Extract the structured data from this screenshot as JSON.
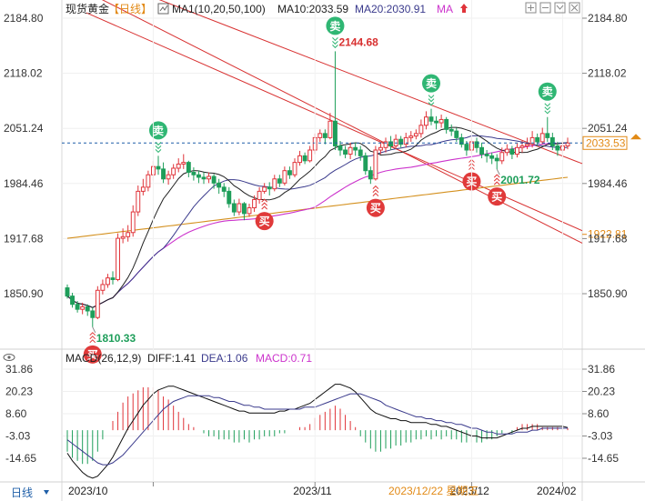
{
  "header": {
    "instrument": "现货黄金",
    "period": "【日线】",
    "ma_label": "MA1(10,20,50,100)",
    "ma10_label": "MA10:2033.59",
    "ma20_label": "MA20:2030.91",
    "ma_suffix": "MA"
  },
  "macd_header": {
    "label": "MACD(26,12,9)",
    "diff": "DIFF:1.41",
    "dea": "DEA:1.06",
    "macd": "MACD:0.71"
  },
  "footer": {
    "period_button": "日线",
    "selected_date": "2023/12/22 星期五"
  },
  "colors": {
    "up": "#e0343a",
    "down": "#1e9e5a",
    "ma10": "#222222",
    "ma20": "#3a3a8c",
    "ma50": "#cc33cc",
    "ma100": "#d4901e",
    "channel": "#d83030",
    "price_line": "#1f5fa8",
    "sell_badge": "#2fb673",
    "buy_badge": "#e03a3a"
  },
  "chart_data": [
    {
      "type": "candlestick",
      "y_ticks": [
        "2184.80",
        "2118.02",
        "2051.24",
        "1984.46",
        "1917.68",
        "1850.90"
      ],
      "ylim": [
        1790,
        2200
      ],
      "x_ticks": [
        "2023/10",
        "2023/11",
        "2023/12",
        "2024/02"
      ],
      "current_price": "2033.53",
      "extra_price_label": "1922.81",
      "annotations": [
        {
          "text": "2144.68",
          "index": 53,
          "value": 2144.68
        },
        {
          "text": "1810.33",
          "index": 5,
          "value": 1810.33
        },
        {
          "text": "2001.72",
          "index": 85,
          "value": 2001.72
        }
      ],
      "signals": [
        {
          "type": "sell",
          "label": "卖",
          "index": 18
        },
        {
          "type": "sell",
          "label": "卖",
          "index": 53
        },
        {
          "type": "sell",
          "label": "卖",
          "index": 72
        },
        {
          "type": "sell",
          "label": "卖",
          "index": 95
        },
        {
          "type": "buy",
          "label": "买",
          "index": 5
        },
        {
          "type": "buy",
          "label": "买",
          "index": 39
        },
        {
          "type": "buy",
          "label": "买",
          "index": 61
        },
        {
          "type": "buy",
          "label": "买",
          "index": 80
        },
        {
          "type": "buy",
          "label": "买",
          "index": 85
        }
      ],
      "candles": [
        [
          1858,
          1848,
          1862,
          1845
        ],
        [
          1848,
          1838,
          1852,
          1834
        ],
        [
          1838,
          1832,
          1842,
          1828
        ],
        [
          1832,
          1835,
          1840,
          1826
        ],
        [
          1835,
          1830,
          1838,
          1824
        ],
        [
          1830,
          1822,
          1834,
          1810.33
        ],
        [
          1822,
          1855,
          1860,
          1820
        ],
        [
          1855,
          1862,
          1868,
          1850
        ],
        [
          1862,
          1870,
          1875,
          1858
        ],
        [
          1870,
          1868,
          1878,
          1862
        ],
        [
          1868,
          1918,
          1924,
          1866
        ],
        [
          1918,
          1920,
          1930,
          1912
        ],
        [
          1920,
          1925,
          1934,
          1914
        ],
        [
          1925,
          1950,
          1958,
          1920
        ],
        [
          1950,
          1975,
          1982,
          1945
        ],
        [
          1975,
          1980,
          1990,
          1970
        ],
        [
          1980,
          1995,
          2000,
          1975
        ],
        [
          1995,
          2005,
          2012,
          1988
        ],
        [
          2005,
          2002,
          2018,
          1995
        ],
        [
          2002,
          1990,
          2010,
          1985
        ],
        [
          1990,
          1995,
          2000,
          1983
        ],
        [
          1995,
          2003,
          2008,
          1990
        ],
        [
          2003,
          2008,
          2015,
          1998
        ],
        [
          2008,
          2010,
          2020,
          2002
        ],
        [
          2010,
          1998,
          2012,
          1992
        ],
        [
          1998,
          1995,
          2004,
          1988
        ],
        [
          1995,
          1992,
          2000,
          1985
        ],
        [
          1992,
          1990,
          1998,
          1984
        ],
        [
          1990,
          1993,
          1998,
          1985
        ],
        [
          1993,
          1985,
          1996,
          1978
        ],
        [
          1985,
          1980,
          1990,
          1972
        ],
        [
          1980,
          1975,
          1985,
          1968
        ],
        [
          1975,
          1960,
          1980,
          1955
        ],
        [
          1960,
          1950,
          1965,
          1945
        ],
        [
          1950,
          1960,
          1966,
          1946
        ],
        [
          1960,
          1948,
          1962,
          1940
        ],
        [
          1948,
          1955,
          1960,
          1944
        ],
        [
          1955,
          1965,
          1970,
          1950
        ],
        [
          1965,
          1975,
          1980,
          1960
        ],
        [
          1975,
          1980,
          1985,
          1972
        ],
        [
          1980,
          1978,
          1986,
          1970
        ],
        [
          1978,
          1990,
          1995,
          1975
        ],
        [
          1990,
          1985,
          1995,
          1980
        ],
        [
          1985,
          2000,
          2005,
          1982
        ],
        [
          2000,
          1995,
          2005,
          1990
        ],
        [
          1995,
          2010,
          2015,
          1992
        ],
        [
          2010,
          2018,
          2024,
          2006
        ],
        [
          2018,
          2012,
          2022,
          2008
        ],
        [
          2012,
          2025,
          2030,
          2010
        ],
        [
          2025,
          2040,
          2045,
          2020
        ],
        [
          2040,
          2045,
          2050,
          2035
        ],
        [
          2045,
          2040,
          2050,
          2032
        ],
        [
          2040,
          2060,
          2070,
          2038
        ],
        [
          2060,
          2030,
          2144.68,
          2025
        ],
        [
          2030,
          2025,
          2036,
          2018
        ],
        [
          2025,
          2020,
          2030,
          2015
        ],
        [
          2020,
          2028,
          2034,
          2014
        ],
        [
          2028,
          2025,
          2034,
          2018
        ],
        [
          2025,
          2018,
          2030,
          2012
        ],
        [
          2018,
          2000,
          2022,
          1995
        ],
        [
          2000,
          1990,
          2005,
          1984
        ],
        [
          1990,
          2025,
          2030,
          1988
        ],
        [
          2025,
          2028,
          2034,
          2020
        ],
        [
          2028,
          2035,
          2040,
          2022
        ],
        [
          2035,
          2030,
          2042,
          2025
        ],
        [
          2030,
          2038,
          2044,
          2026
        ],
        [
          2038,
          2032,
          2042,
          2028
        ],
        [
          2032,
          2040,
          2046,
          2028
        ],
        [
          2040,
          2042,
          2048,
          2035
        ],
        [
          2042,
          2045,
          2050,
          2038
        ],
        [
          2045,
          2055,
          2062,
          2040
        ],
        [
          2055,
          2065,
          2072,
          2050
        ],
        [
          2065,
          2060,
          2075,
          2055
        ],
        [
          2060,
          2058,
          2066,
          2050
        ],
        [
          2058,
          2062,
          2068,
          2052
        ],
        [
          2062,
          2050,
          2065,
          2045
        ],
        [
          2050,
          2048,
          2056,
          2042
        ],
        [
          2048,
          2040,
          2052,
          2035
        ],
        [
          2040,
          2032,
          2045,
          2028
        ],
        [
          2032,
          2025,
          2036,
          2018
        ],
        [
          2025,
          2035,
          2040,
          2020
        ],
        [
          2035,
          2028,
          2040,
          2022
        ],
        [
          2028,
          2020,
          2034,
          2015
        ],
        [
          2020,
          2018,
          2025,
          2010
        ],
        [
          2018,
          2015,
          2022,
          2008
        ],
        [
          2015,
          2012,
          2020,
          2001.72
        ],
        [
          2012,
          2022,
          2028,
          2008
        ],
        [
          2022,
          2026,
          2032,
          2018
        ],
        [
          2026,
          2020,
          2030,
          2014
        ],
        [
          2020,
          2028,
          2034,
          2016
        ],
        [
          2028,
          2030,
          2036,
          2022
        ],
        [
          2030,
          2032,
          2040,
          2026
        ],
        [
          2032,
          2040,
          2048,
          2028
        ],
        [
          2040,
          2035,
          2045,
          2030
        ],
        [
          2035,
          2045,
          2052,
          2032
        ],
        [
          2045,
          2040,
          2065,
          2035
        ],
        [
          2040,
          2030,
          2046,
          2025
        ],
        [
          2030,
          2025,
          2035,
          2018
        ],
        [
          2025,
          2030,
          2036,
          2020
        ],
        [
          2030,
          2033.53,
          2040,
          2026
        ]
      ]
    },
    {
      "type": "bar",
      "y_ticks": [
        "31.86",
        "20.23",
        "8.60",
        "-3.03",
        "-14.65"
      ],
      "ylim": [
        -24,
        38
      ],
      "series": [
        {
          "name": "DIFF",
          "values": [
            -12,
            -16,
            -19,
            -22,
            -24,
            -25,
            -24,
            -21,
            -18,
            -14,
            -9,
            -4,
            1,
            5,
            9,
            13,
            16,
            19,
            21,
            22,
            23,
            23,
            22,
            21,
            20,
            19,
            18,
            17,
            16,
            15,
            14,
            13,
            12,
            11,
            10,
            10,
            9,
            9,
            9,
            9,
            9,
            9,
            10,
            10,
            11,
            11,
            12,
            13,
            14,
            16,
            18,
            20,
            22,
            24,
            24,
            23,
            22,
            20,
            17,
            14,
            11,
            9,
            8,
            7,
            6,
            6,
            5,
            5,
            4,
            4,
            4,
            4,
            3,
            3,
            2,
            2,
            1,
            0,
            -1,
            -2,
            -3,
            -3,
            -4,
            -4,
            -4,
            -4,
            -3,
            -2,
            -1,
            0,
            1,
            1,
            2,
            2,
            2,
            2,
            2,
            2,
            2,
            1.41
          ]
        },
        {
          "name": "DEA",
          "values": [
            -5,
            -7,
            -9,
            -11,
            -13,
            -15,
            -17,
            -18,
            -18,
            -17,
            -15,
            -13,
            -10,
            -7,
            -4,
            -1,
            2,
            5,
            8,
            11,
            13,
            15,
            16,
            17,
            18,
            18,
            18,
            18,
            18,
            17,
            17,
            16,
            15,
            15,
            14,
            13,
            13,
            12,
            12,
            11,
            11,
            11,
            11,
            11,
            11,
            11,
            11,
            12,
            12,
            12,
            13,
            14,
            15,
            16,
            17,
            18,
            19,
            19,
            19,
            18,
            17,
            16,
            15,
            13,
            12,
            11,
            10,
            9,
            8,
            7,
            7,
            6,
            6,
            5,
            5,
            4,
            4,
            3,
            3,
            2,
            1,
            1,
            0,
            -1,
            -1,
            -2,
            -2,
            -2,
            -2,
            -1,
            -1,
            -1,
            0,
            0,
            1,
            1,
            1,
            1,
            1,
            1.06
          ]
        },
        {
          "name": "MACD",
          "values": [
            -7,
            -9,
            -10,
            -11,
            -11,
            -10,
            -7,
            -3,
            0,
            3,
            6,
            9,
            11,
            12,
            13,
            14,
            14,
            14,
            13,
            11,
            10,
            8,
            6,
            4,
            2,
            1,
            0,
            -1,
            -2,
            -2,
            -3,
            -3,
            -3,
            -4,
            -4,
            -3,
            -4,
            -3,
            -3,
            -2,
            -2,
            -2,
            -1,
            -1,
            0,
            0,
            1,
            1,
            2,
            4,
            5,
            6,
            7,
            8,
            7,
            5,
            3,
            1,
            -2,
            -4,
            -6,
            -7,
            -7,
            -6,
            -6,
            -5,
            -5,
            -4,
            -4,
            -3,
            -3,
            -2,
            -3,
            -2,
            -3,
            -2,
            -3,
            -3,
            -4,
            -4,
            -4,
            -4,
            -4,
            -3,
            -3,
            -2,
            -1,
            0,
            -1,
            1,
            2,
            2,
            2,
            2,
            1,
            1,
            1,
            1,
            1,
            0.71
          ]
        }
      ]
    }
  ]
}
